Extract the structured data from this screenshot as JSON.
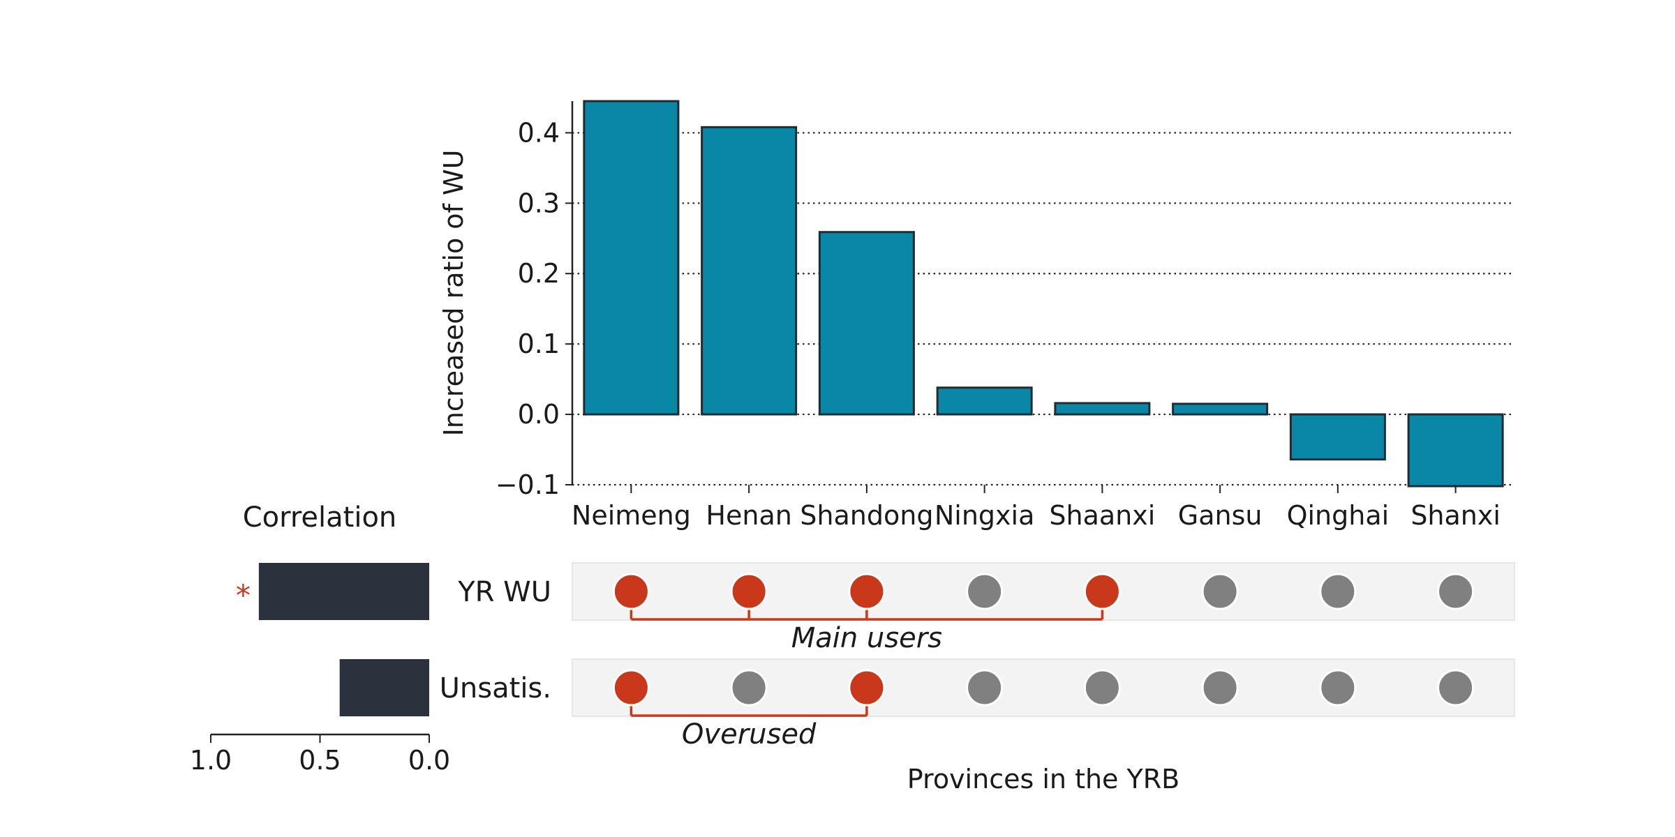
{
  "chart_data": {
    "type": "bar",
    "categories": [
      "Neimeng",
      "Henan",
      "Shandong",
      "Ningxia",
      "Shaanxi",
      "Gansu",
      "Qinghai",
      "Shanxi"
    ],
    "values": [
      0.445,
      0.408,
      0.259,
      0.038,
      0.016,
      0.015,
      -0.064,
      -0.102
    ],
    "ylabel": "Increased ratio of WU",
    "xlabel": "Provinces in the YRB",
    "ylim": [
      -0.1,
      0.445
    ],
    "yticks": [
      -0.1,
      0.0,
      0.1,
      0.2,
      0.3,
      0.4
    ],
    "ytick_labels": [
      "−0.1",
      "0.0",
      "0.1",
      "0.2",
      "0.3",
      "0.4"
    ],
    "grid": "horizontal dotted",
    "bar_color": "#0a87a6",
    "rows": [
      {
        "label": "YR WU",
        "members": [
          true,
          true,
          true,
          false,
          true,
          false,
          false,
          false
        ],
        "annotation": "Main users",
        "correlation": 0.78,
        "significance": "*"
      },
      {
        "label": "Unsatis.",
        "members": [
          true,
          false,
          true,
          false,
          false,
          false,
          false,
          false
        ],
        "annotation": "Overused",
        "correlation": 0.41,
        "significance": ""
      }
    ],
    "correlation_title": "Correlation",
    "correlation_ticks": [
      1.0,
      0.5,
      0.0
    ],
    "correlation_tick_labels": [
      "1.0",
      "0.5",
      "0.0"
    ],
    "colors": {
      "active_dot": "#c9381a",
      "inactive_dot": "#808080",
      "correlation_bar": "#2b323d",
      "row_background": "#f3f3f3"
    }
  }
}
